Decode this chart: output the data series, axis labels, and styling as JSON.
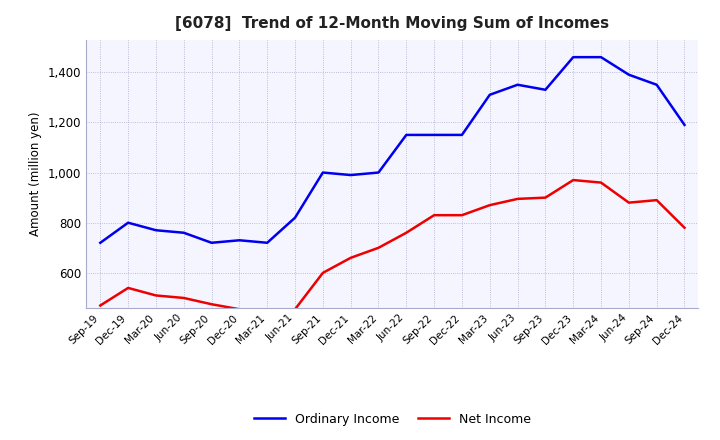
{
  "title": "[6078]  Trend of 12-Month Moving Sum of Incomes",
  "ylabel": "Amount (million yen)",
  "ylim": [
    460,
    1530
  ],
  "yticks": [
    600,
    800,
    1000,
    1200,
    1400
  ],
  "background_color": "#ffffff",
  "plot_bg_color": "#f5f5ff",
  "grid_color": "#aaaacc",
  "line_ordinary_color": "#0000ee",
  "line_net_color": "#ee0000",
  "legend_labels": [
    "Ordinary Income",
    "Net Income"
  ],
  "x_labels": [
    "Sep-19",
    "Dec-19",
    "Mar-20",
    "Jun-20",
    "Sep-20",
    "Dec-20",
    "Mar-21",
    "Jun-21",
    "Sep-21",
    "Dec-21",
    "Mar-22",
    "Jun-22",
    "Sep-22",
    "Dec-22",
    "Mar-23",
    "Jun-23",
    "Sep-23",
    "Dec-23",
    "Mar-24",
    "Jun-24",
    "Sep-24",
    "Dec-24"
  ],
  "ordinary_income": [
    720,
    800,
    770,
    760,
    720,
    730,
    720,
    820,
    1000,
    990,
    1000,
    1150,
    1150,
    1150,
    1310,
    1350,
    1330,
    1460,
    1460,
    1390,
    1350,
    1190
  ],
  "net_income": [
    470,
    540,
    510,
    500,
    475,
    455,
    455,
    455,
    600,
    660,
    700,
    760,
    830,
    830,
    870,
    895,
    900,
    970,
    960,
    880,
    890,
    780
  ]
}
